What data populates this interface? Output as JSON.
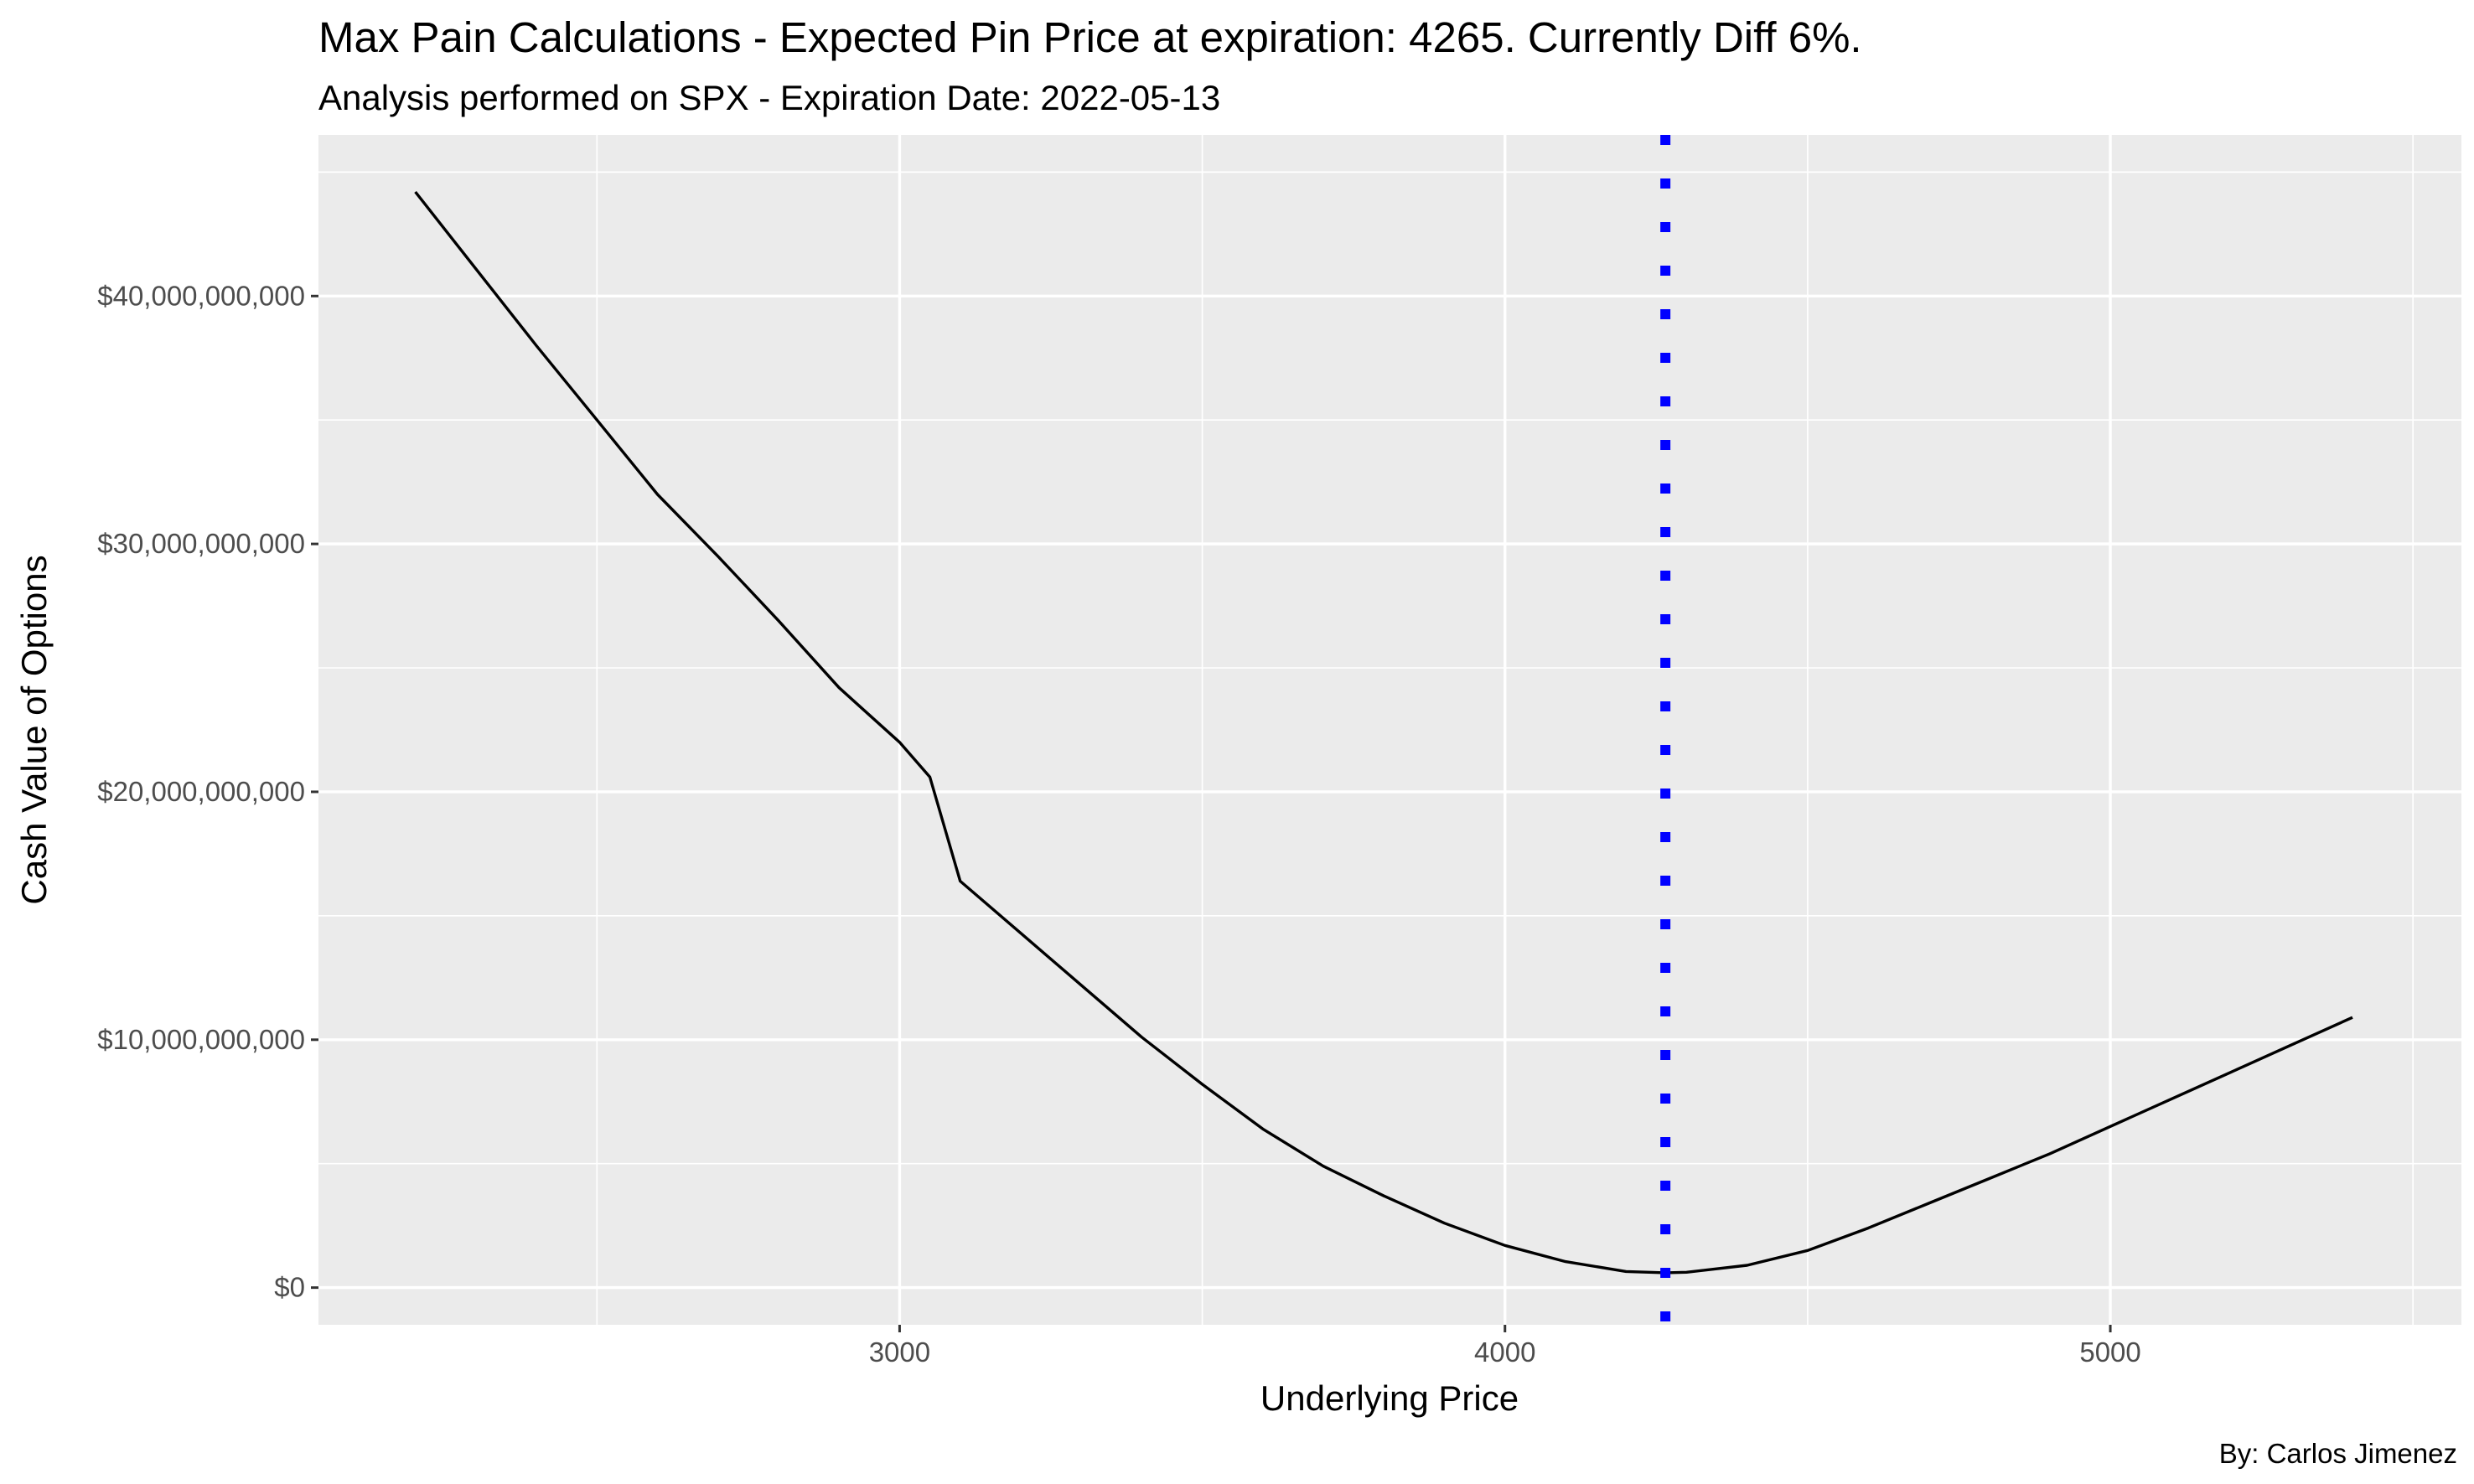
{
  "chart_data": {
    "type": "line",
    "title": "Max Pain Calculations - Expected Pin Price at expiration: 4265. Currently Diff 6%.",
    "subtitle": "Analysis performed on SPX - Expiration Date: 2022-05-13",
    "xlabel": "Underlying Price",
    "ylabel": "Cash Value of Options",
    "caption": "By: Carlos Jimenez",
    "xlim": [
      2040,
      5580
    ],
    "ylim": [
      -1500000000,
      46500000000
    ],
    "x_ticks": [
      3000,
      4000,
      5000
    ],
    "x_tick_labels": [
      "3000",
      "4000",
      "5000"
    ],
    "x_minor_ticks": [
      2500,
      3500,
      4500,
      5500
    ],
    "y_ticks": [
      0,
      10000000000,
      20000000000,
      30000000000,
      40000000000
    ],
    "y_tick_labels": [
      "$0",
      "$10,000,000,000",
      "$20,000,000,000",
      "$30,000,000,000",
      "$40,000,000,000"
    ],
    "y_minor_ticks": [
      5000000000,
      15000000000,
      25000000000,
      35000000000,
      45000000000
    ],
    "grid": true,
    "legend": "none",
    "series": [
      {
        "color": "#000000",
        "x": [
          2200,
          2300,
          2400,
          2500,
          2600,
          2700,
          2800,
          2900,
          3000,
          3050,
          3100,
          3200,
          3300,
          3400,
          3500,
          3600,
          3700,
          3800,
          3900,
          4000,
          4100,
          4200,
          4265,
          4300,
          4400,
          4500,
          4600,
          4700,
          4800,
          4900,
          5000,
          5100,
          5200,
          5300,
          5400
        ],
        "y": [
          44200000000,
          41100000000,
          38000000000,
          35000000000,
          32000000000,
          29500000000,
          26900000000,
          24200000000,
          22000000000,
          20600000000,
          16400000000,
          14300000000,
          12200000000,
          10100000000,
          8200000000,
          6400000000,
          4900000000,
          3700000000,
          2600000000,
          1700000000,
          1050000000,
          650000000,
          600000000,
          620000000,
          900000000,
          1500000000,
          2400000000,
          3400000000,
          4400000000,
          5400000000,
          6500000000,
          7600000000,
          8700000000,
          9800000000,
          10900000000
        ]
      }
    ],
    "vline": {
      "x": 4265,
      "color": "#0000ff",
      "style": "dotted"
    },
    "panel_background": "#ebebeb"
  }
}
